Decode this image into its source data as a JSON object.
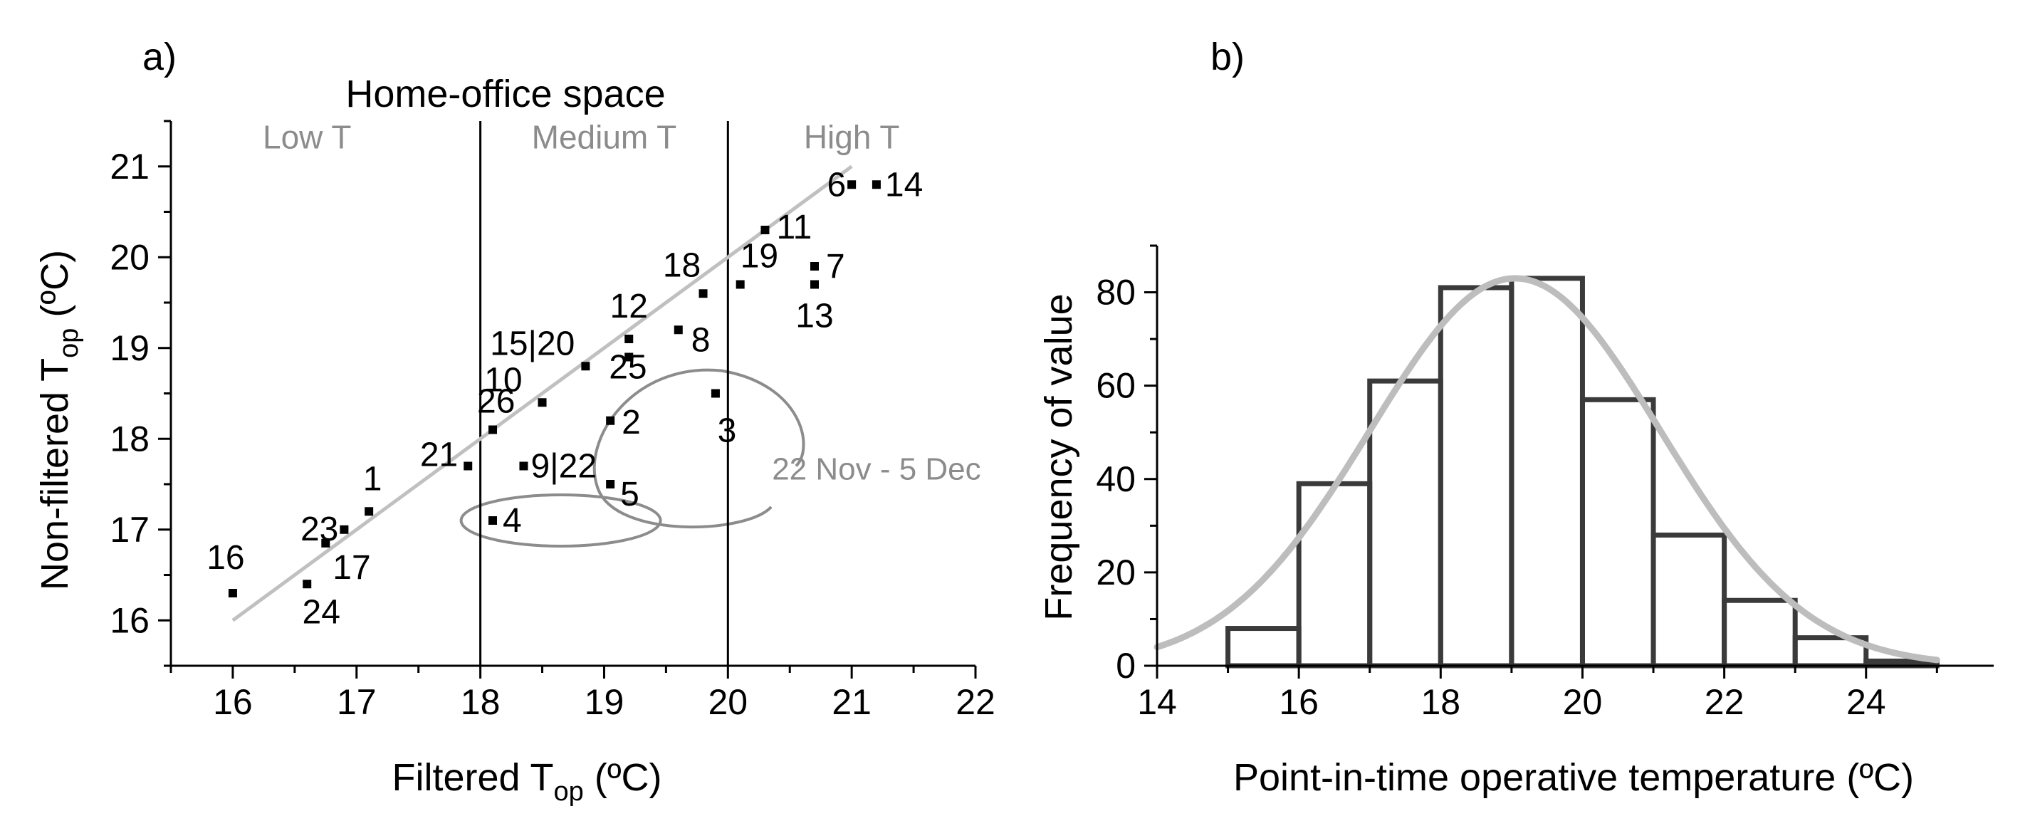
{
  "colors": {
    "axis": "#000000",
    "point": "#000000",
    "annotation": "#8c8c8c",
    "fit": "#c0c0c0",
    "bar_stroke": "#3a3a3a",
    "curve": "#bdbdbd",
    "background": "#ffffff"
  },
  "chart_data": [
    {
      "panel_label": "a)",
      "type": "scatter",
      "title": "Home-office space",
      "xlabel": {
        "main": "Filtered T",
        "sub": "op",
        "tail": " (ºC)"
      },
      "ylabel": {
        "main": "Non-filtered T",
        "sub": "op",
        "tail": " (ºC)"
      },
      "xlim": [
        15.5,
        22
      ],
      "ylim": [
        15.5,
        21.5
      ],
      "xticks": [
        16,
        17,
        18,
        19,
        20,
        21,
        22
      ],
      "yticks": [
        16,
        17,
        18,
        19,
        20,
        21
      ],
      "grid": false,
      "regions": [
        {
          "label": "Low T",
          "x": 16.6
        },
        {
          "label": "Medium T",
          "x": 19.0
        },
        {
          "label": "High T",
          "x": 21.0
        }
      ],
      "region_dividers": [
        18,
        20
      ],
      "fit_line": {
        "x": [
          16,
          21
        ],
        "y": [
          16,
          21
        ]
      },
      "points": [
        {
          "label": "16",
          "x": 16.0,
          "y": 16.3
        },
        {
          "label": "24",
          "x": 16.6,
          "y": 16.4
        },
        {
          "label": "23",
          "x": 16.9,
          "y": 17.0
        },
        {
          "label": "17",
          "x": 16.75,
          "y": 16.85
        },
        {
          "label": "1",
          "x": 17.1,
          "y": 17.2
        },
        {
          "label": "21",
          "x": 17.9,
          "y": 17.7
        },
        {
          "label": "26",
          "x": 18.1,
          "y": 18.1
        },
        {
          "label": "4",
          "x": 18.1,
          "y": 17.1
        },
        {
          "label": "9|22",
          "x": 18.35,
          "y": 17.7
        },
        {
          "label": "10",
          "x": 18.5,
          "y": 18.4
        },
        {
          "label": "15|20",
          "x": 18.85,
          "y": 18.8
        },
        {
          "label": "5",
          "x": 19.05,
          "y": 17.5
        },
        {
          "label": "2",
          "x": 19.05,
          "y": 18.2
        },
        {
          "label": "25",
          "x": 19.2,
          "y": 18.9
        },
        {
          "label": "12",
          "x": 19.2,
          "y": 19.1
        },
        {
          "label": "8",
          "x": 19.6,
          "y": 19.2
        },
        {
          "label": "3",
          "x": 19.9,
          "y": 18.5
        },
        {
          "label": "18",
          "x": 19.8,
          "y": 19.6
        },
        {
          "label": "19",
          "x": 20.1,
          "y": 19.7
        },
        {
          "label": "11",
          "x": 20.3,
          "y": 20.3
        },
        {
          "label": "7",
          "x": 20.7,
          "y": 19.9
        },
        {
          "label": "13",
          "x": 20.7,
          "y": 19.7
        },
        {
          "label": "6",
          "x": 21.0,
          "y": 20.8
        },
        {
          "label": "14",
          "x": 21.2,
          "y": 20.8
        }
      ],
      "annotation": {
        "text": "22 Nov - 5 Dec"
      }
    },
    {
      "panel_label": "b)",
      "type": "bar",
      "title": "",
      "xlabel": "Point-in-time operative temperature (ºC)",
      "ylabel": "Frequency of value",
      "xlim": [
        14,
        25.8
      ],
      "ylim": [
        0,
        90
      ],
      "xticks": [
        14,
        16,
        18,
        20,
        22,
        24
      ],
      "yticks": [
        0,
        20,
        40,
        60,
        80
      ],
      "grid": false,
      "bins": [
        {
          "from": 15,
          "to": 16,
          "value": 8
        },
        {
          "from": 16,
          "to": 17,
          "value": 39
        },
        {
          "from": 17,
          "to": 18,
          "value": 61
        },
        {
          "from": 18,
          "to": 19,
          "value": 81
        },
        {
          "from": 19,
          "to": 20,
          "value": 83
        },
        {
          "from": 20,
          "to": 21,
          "value": 57
        },
        {
          "from": 21,
          "to": 22,
          "value": 28
        },
        {
          "from": 22,
          "to": 23,
          "value": 14
        },
        {
          "from": 23,
          "to": 24,
          "value": 6
        },
        {
          "from": 24,
          "to": 25,
          "value": 1
        }
      ],
      "fit_curve": {
        "type": "normal",
        "mean": 19.05,
        "sd": 2.05,
        "peak": 83
      }
    }
  ]
}
